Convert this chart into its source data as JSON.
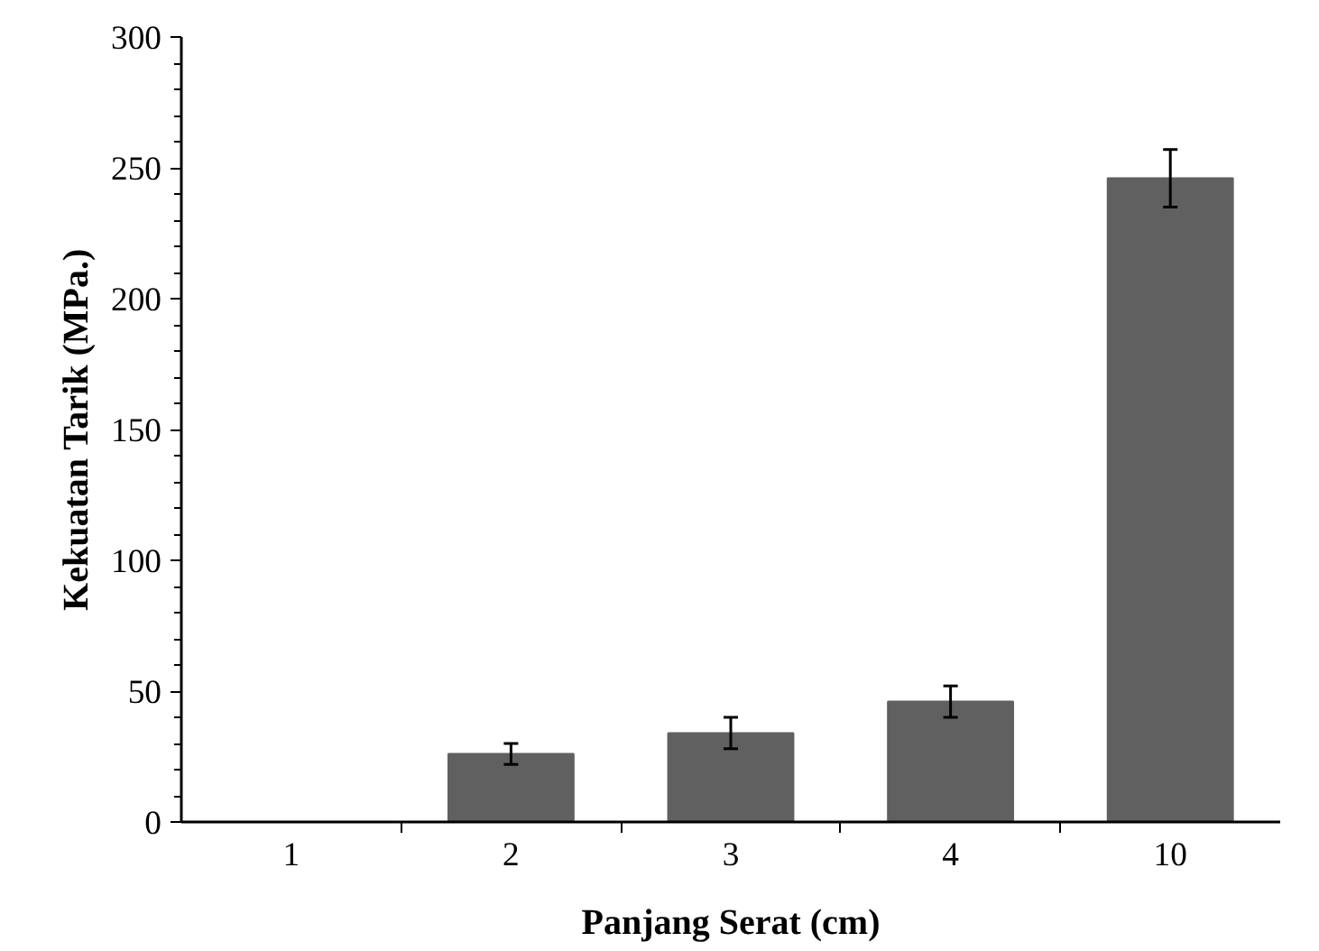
{
  "chart_data": {
    "type": "bar",
    "xlabel": "Panjang Serat (cm)",
    "ylabel": "Kekuatan Tarik (MPa.)",
    "categories": [
      "1",
      "2",
      "3",
      "4",
      "10"
    ],
    "values": [
      0,
      26,
      34,
      46,
      246
    ],
    "errors": [
      null,
      4,
      6,
      6,
      11
    ],
    "color": "#606060",
    "ylim": [
      0,
      300
    ],
    "yticks": [
      0,
      50,
      100,
      150,
      200,
      250,
      300
    ],
    "grid": false
  }
}
